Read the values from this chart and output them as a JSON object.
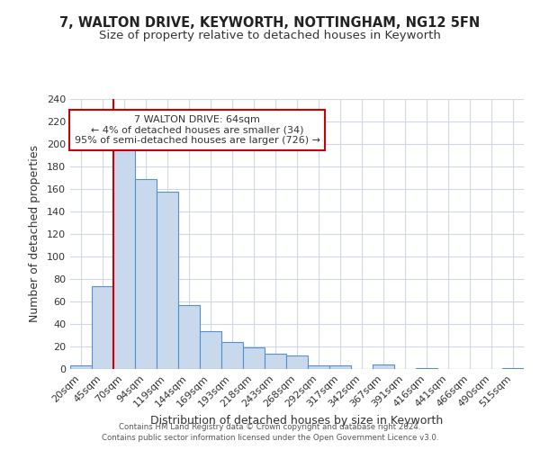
{
  "title": "7, WALTON DRIVE, KEYWORTH, NOTTINGHAM, NG12 5FN",
  "subtitle": "Size of property relative to detached houses in Keyworth",
  "xlabel": "Distribution of detached houses by size in Keyworth",
  "ylabel": "Number of detached properties",
  "bar_labels": [
    "20sqm",
    "45sqm",
    "70sqm",
    "94sqm",
    "119sqm",
    "144sqm",
    "169sqm",
    "193sqm",
    "218sqm",
    "243sqm",
    "268sqm",
    "292sqm",
    "317sqm",
    "342sqm",
    "367sqm",
    "391sqm",
    "416sqm",
    "441sqm",
    "466sqm",
    "490sqm",
    "515sqm"
  ],
  "bar_values": [
    3,
    74,
    198,
    169,
    158,
    57,
    34,
    24,
    19,
    14,
    12,
    3,
    3,
    0,
    4,
    0,
    1,
    0,
    0,
    0,
    1
  ],
  "bar_color": "#c8d9ee",
  "bar_edge_color": "#5590c8",
  "vline_color": "#cc0000",
  "annotation_text": "7 WALTON DRIVE: 64sqm\n← 4% of detached houses are smaller (34)\n95% of semi-detached houses are larger (726) →",
  "annotation_box_color": "#ffffff",
  "annotation_box_edge": "#cc0000",
  "ylim": [
    0,
    240
  ],
  "yticks": [
    0,
    20,
    40,
    60,
    80,
    100,
    120,
    140,
    160,
    180,
    200,
    220,
    240
  ],
  "footer1": "Contains HM Land Registry data © Crown copyright and database right 2024.",
  "footer2": "Contains public sector information licensed under the Open Government Licence v3.0.",
  "bg_color": "#ffffff",
  "grid_color": "#d0d8e8",
  "title_fontsize": 10.5,
  "subtitle_fontsize": 9.5,
  "axis_label_fontsize": 9,
  "tick_fontsize": 8
}
